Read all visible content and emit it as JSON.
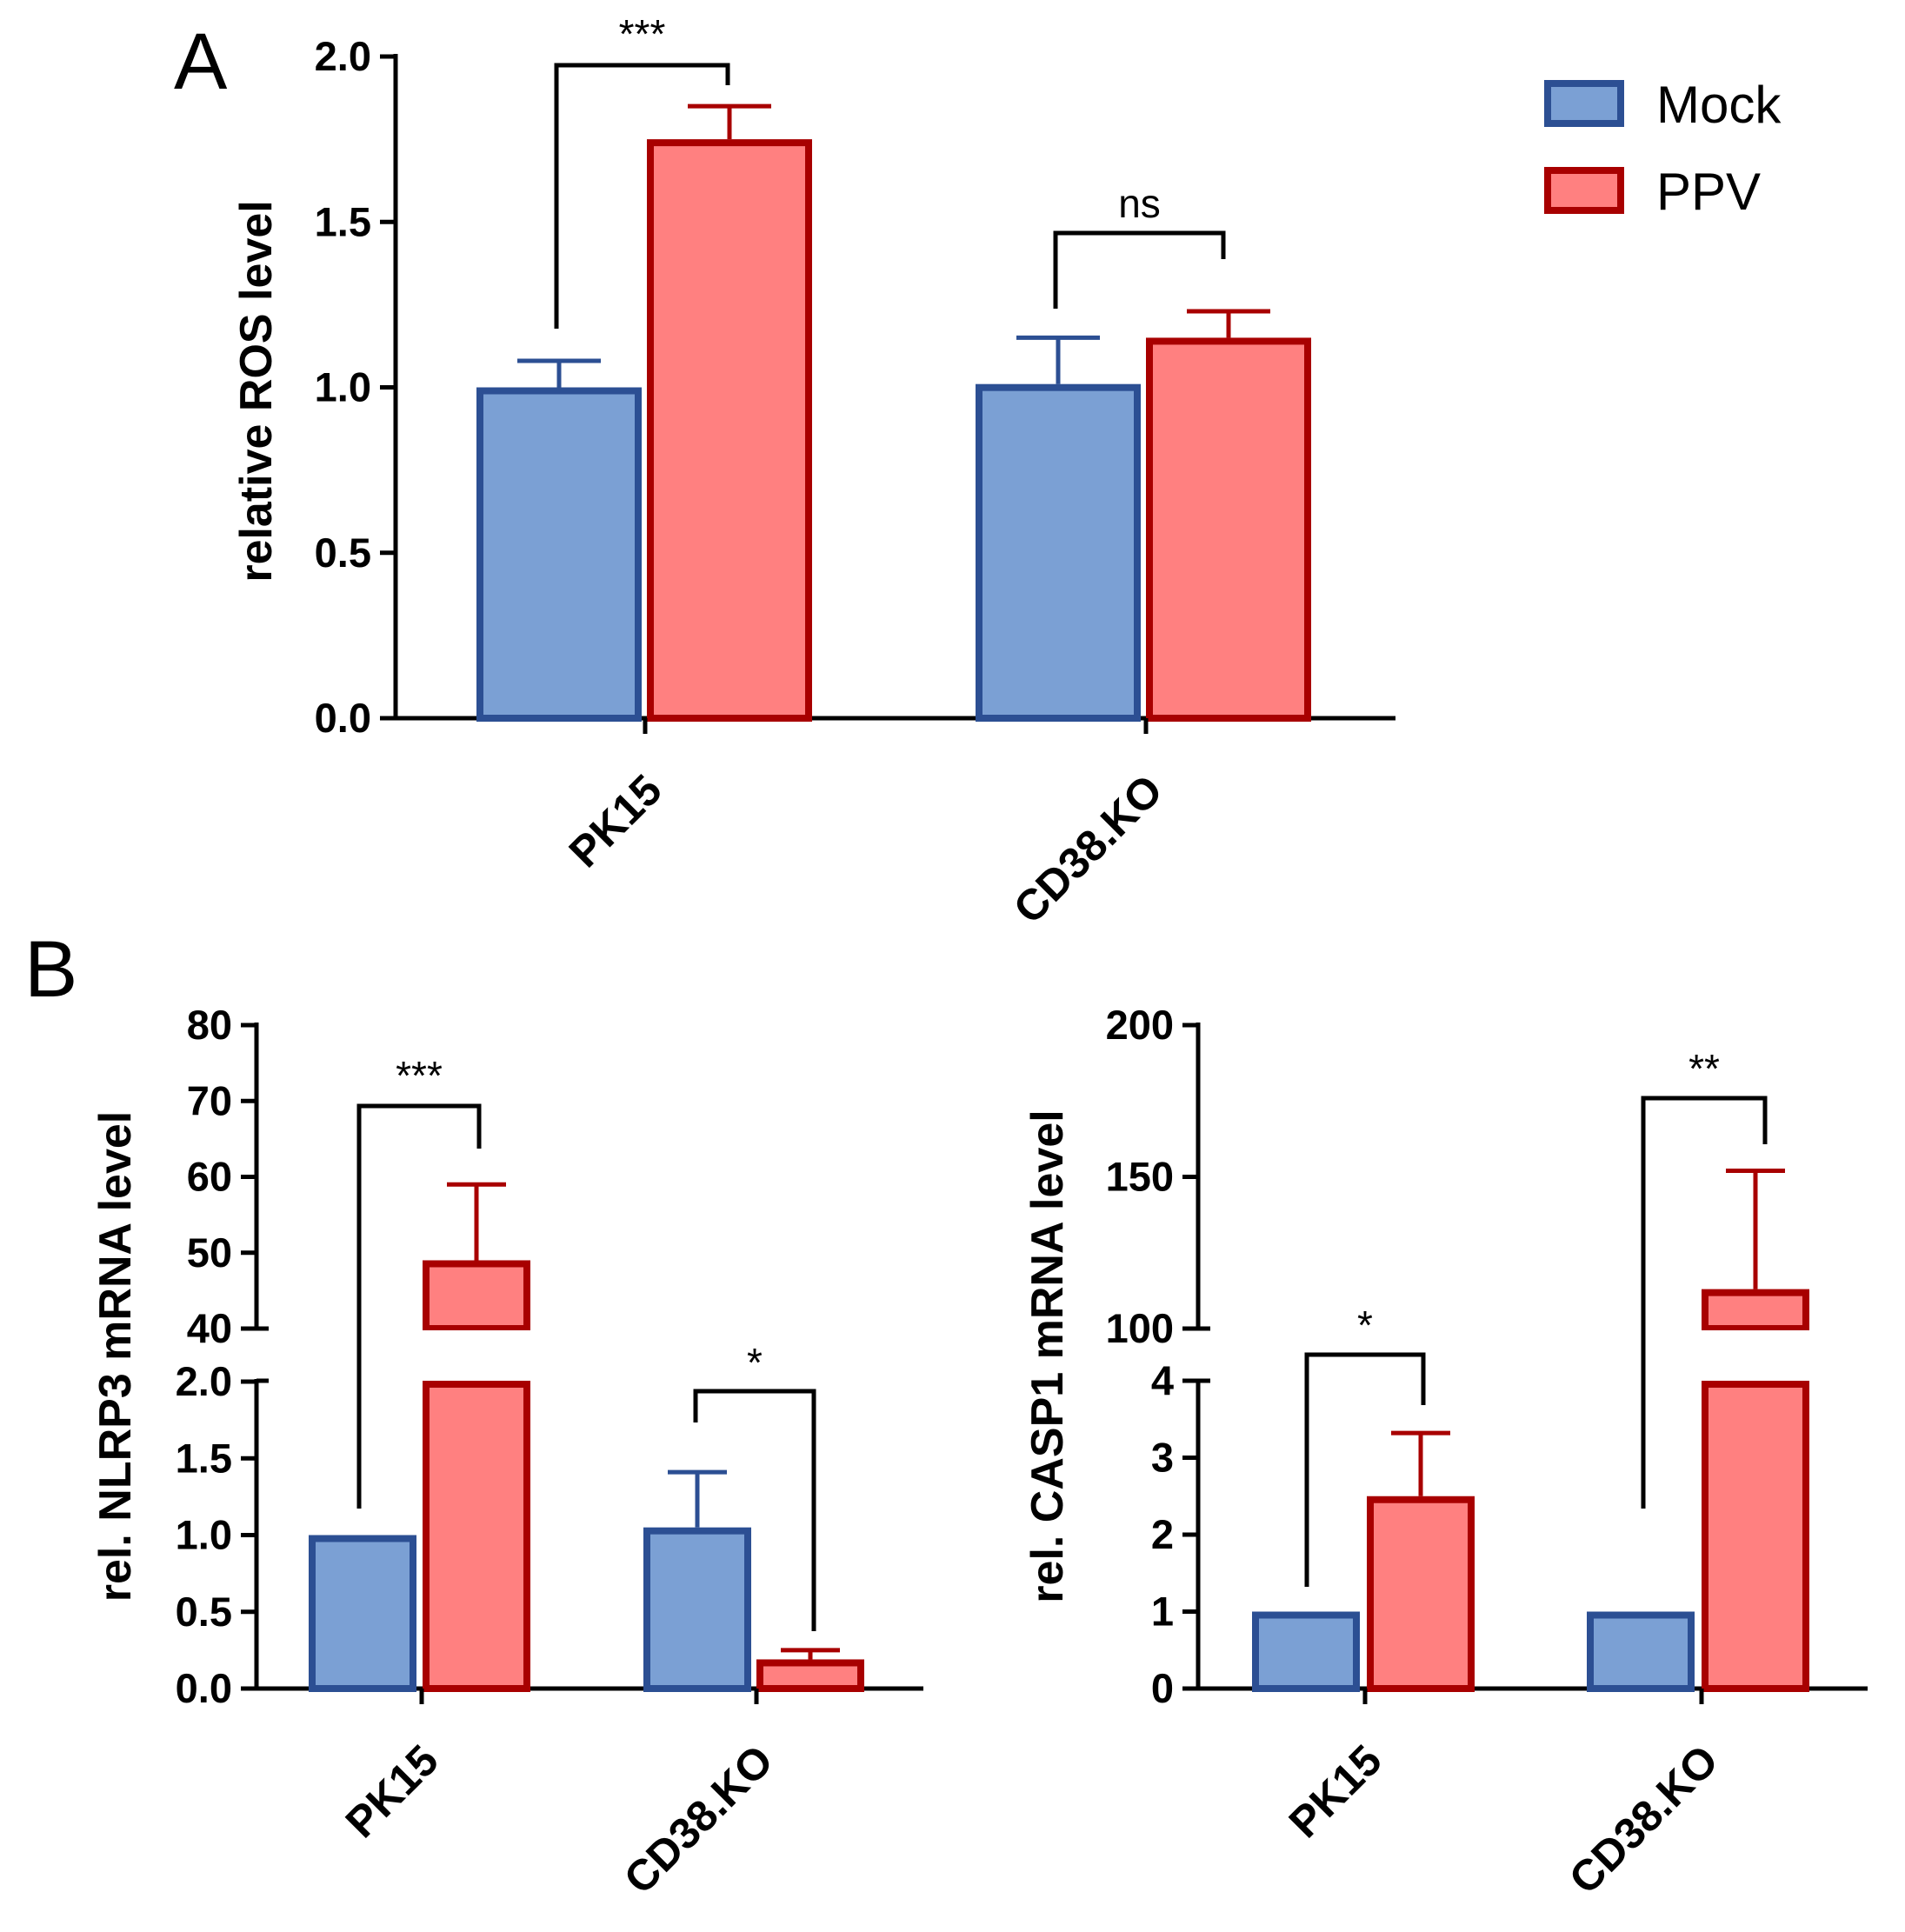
{
  "colors": {
    "mock_fill": "#7BA0D4",
    "mock_stroke": "#2C4F93",
    "ppv_fill": "#FF8080",
    "ppv_stroke": "#A80000",
    "axis": "#000000"
  },
  "legend": {
    "items": [
      {
        "label": "Mock",
        "series": "mock"
      },
      {
        "label": "PPV",
        "series": "ppv"
      }
    ]
  },
  "chart_data": [
    {
      "id": "A",
      "panel_label": "A",
      "type": "bar",
      "title": "",
      "xlabel": "",
      "ylabel": "relative ROS level",
      "categories": [
        "PK15",
        "CD38.KO"
      ],
      "series": [
        {
          "name": "Mock",
          "key": "mock",
          "values": [
            1.0,
            1.01
          ],
          "errors": [
            0.08,
            0.14
          ]
        },
        {
          "name": "PPV",
          "key": "ppv",
          "values": [
            1.75,
            1.15
          ],
          "errors": [
            0.1,
            0.08
          ]
        }
      ],
      "ylim": [
        0,
        2.0
      ],
      "yticks": [
        "0.0",
        "0.5",
        "1.0",
        "1.5",
        "2.0"
      ],
      "ytick_values": [
        0,
        0.5,
        1.0,
        1.5,
        2.0
      ],
      "significance": [
        {
          "category": "PK15",
          "label": "***"
        },
        {
          "category": "CD38.KO",
          "label": "ns"
        }
      ]
    },
    {
      "id": "B1",
      "panel_label": "B",
      "type": "bar",
      "title": "",
      "xlabel": "",
      "ylabel": "rel. NLRP3 mRNA level",
      "categories": [
        "PK15",
        "CD38.KO"
      ],
      "series": [
        {
          "name": "Mock",
          "key": "mock",
          "values": [
            1.0,
            1.05
          ],
          "errors": [
            0,
            0.36
          ]
        },
        {
          "name": "PPV",
          "key": "ppv",
          "values": [
            49.0,
            0.19
          ],
          "errors": [
            10.0,
            0.06
          ]
        }
      ],
      "y_axis_break": {
        "lower_range": [
          0,
          2.0
        ],
        "upper_range": [
          40,
          80
        ],
        "lower_ticks": [
          "0.0",
          "0.5",
          "1.0",
          "1.5",
          "2.0"
        ],
        "lower_tick_values": [
          0,
          0.5,
          1.0,
          1.5,
          2.0
        ],
        "upper_ticks": [
          "40",
          "50",
          "60",
          "70",
          "80"
        ],
        "upper_tick_values": [
          40,
          50,
          60,
          70,
          80
        ]
      },
      "significance": [
        {
          "category": "PK15",
          "label": "***"
        },
        {
          "category": "CD38.KO",
          "label": "*"
        }
      ]
    },
    {
      "id": "B2",
      "panel_label": "",
      "type": "bar",
      "title": "",
      "xlabel": "",
      "ylabel": "rel. CASP1 mRNA level",
      "categories": [
        "PK15",
        "CD38.KO"
      ],
      "series": [
        {
          "name": "Mock",
          "key": "mock",
          "values": [
            1.0,
            1.0
          ],
          "errors": [
            0,
            0
          ]
        },
        {
          "name": "PPV",
          "key": "ppv",
          "values": [
            2.5,
            113.0
          ],
          "errors": [
            0.82,
            39.0
          ]
        }
      ],
      "y_axis_break": {
        "lower_range": [
          0,
          4
        ],
        "upper_range": [
          100,
          200
        ],
        "lower_ticks": [
          "0",
          "1",
          "2",
          "3",
          "4"
        ],
        "lower_tick_values": [
          0,
          1,
          2,
          3,
          4
        ],
        "upper_ticks": [
          "100",
          "150",
          "200"
        ],
        "upper_tick_values": [
          100,
          150,
          200
        ]
      },
      "significance": [
        {
          "category": "PK15",
          "label": "*"
        },
        {
          "category": "CD38.KO",
          "label": "**"
        }
      ]
    }
  ]
}
